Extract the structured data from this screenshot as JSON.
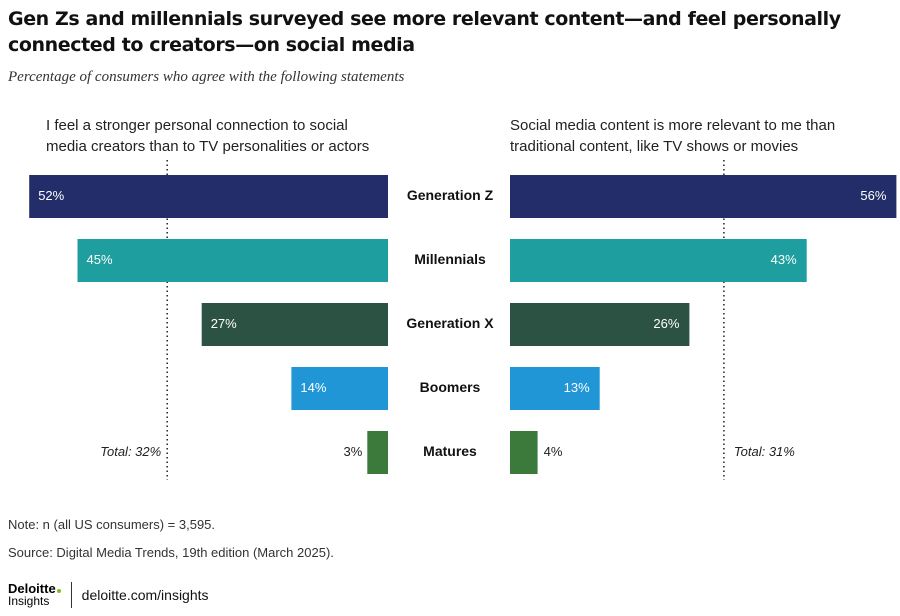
{
  "title": "Gen Zs and millennials surveyed see more relevant content—and feel personally connected to creators—on social media",
  "subtitle": "Percentage of consumers who agree with the following statements",
  "note": "Note: n (all US consumers) = 3,595.",
  "source": "Source: Digital Media Trends, 19th edition (March 2025).",
  "logo": {
    "name": "Deloitte",
    "sub": "Insights"
  },
  "footer_link": "deloitte.com/insights",
  "colors": {
    "Generation Z": "#232d69",
    "Millennials": "#1e9e9e",
    "Generation X": "#2b5242",
    "Boomers": "#2196d6",
    "Matures": "#3c7a3c"
  },
  "chart_data": [
    {
      "type": "bar",
      "orientation": "horizontal",
      "direction": "right-to-left",
      "label": "I feel a stronger personal connection to social media creators than to TV personalities or actors",
      "categories": [
        "Generation Z",
        "Millennials",
        "Generation X",
        "Boomers",
        "Matures"
      ],
      "values": [
        52,
        45,
        27,
        14,
        3
      ],
      "value_labels": [
        "52%",
        "45%",
        "27%",
        "14%",
        "3%"
      ],
      "reference_line": {
        "value": 32,
        "label": "Total: 32%",
        "style": "dotted"
      },
      "xlim": [
        0,
        52
      ]
    },
    {
      "type": "bar",
      "orientation": "horizontal",
      "direction": "left-to-right",
      "label": "Social media content is more relevant to me than traditional content, like TV shows or movies",
      "categories": [
        "Generation Z",
        "Millennials",
        "Generation X",
        "Boomers",
        "Matures"
      ],
      "values": [
        56,
        43,
        26,
        13,
        4
      ],
      "value_labels": [
        "56%",
        "43%",
        "26%",
        "13%",
        "4%"
      ],
      "reference_line": {
        "value": 31,
        "label": "Total: 31%",
        "style": "dotted"
      },
      "xlim": [
        0,
        56
      ]
    }
  ]
}
